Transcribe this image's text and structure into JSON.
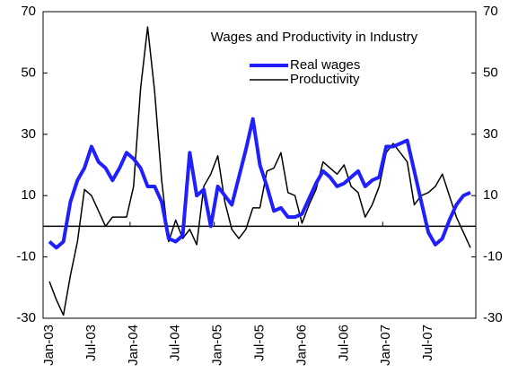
{
  "chart_data": {
    "type": "line",
    "title": "Wages and Productivity in Industry",
    "categories": [
      "Jan-03",
      null,
      null,
      null,
      null,
      null,
      "Jul-03",
      null,
      null,
      null,
      null,
      null,
      "Jan-04",
      null,
      null,
      null,
      null,
      null,
      "Jul-04",
      null,
      null,
      null,
      null,
      null,
      "Jan-05",
      null,
      null,
      null,
      null,
      null,
      "Jul-05",
      null,
      null,
      null,
      null,
      null,
      "Jan-06",
      null,
      null,
      null,
      null,
      null,
      "Jul-06",
      null,
      null,
      null,
      null,
      null,
      "Jan-07",
      null,
      null,
      null,
      null,
      null,
      "Jul-07",
      null,
      null,
      null,
      null,
      null,
      null
    ],
    "series": [
      {
        "name": "Real wages",
        "color": "#1f1fff",
        "values": [
          -5,
          -7,
          -5,
          8,
          15,
          19,
          26,
          21,
          19,
          15,
          19,
          24,
          22,
          19,
          13,
          13,
          8,
          -4,
          -5,
          -3,
          24,
          10,
          12,
          0,
          13,
          10,
          7,
          16,
          25,
          35,
          20,
          13,
          5,
          6,
          3,
          3,
          4,
          9,
          14,
          18,
          16,
          13,
          14,
          16,
          18,
          13,
          15,
          16,
          26,
          26,
          27,
          28,
          18,
          8,
          -2,
          -6,
          -4,
          2,
          7,
          10,
          11
        ]
      },
      {
        "name": "Productivity",
        "color": "#000000",
        "values": [
          -18,
          -24,
          -29,
          -16,
          -5,
          12,
          10,
          5,
          0,
          3,
          3,
          3,
          13,
          45,
          65,
          44,
          15,
          -5,
          2,
          -4,
          -1,
          -6,
          13,
          17,
          23,
          8,
          -1,
          -4,
          -1,
          6,
          6,
          18,
          19,
          24,
          11,
          10,
          1,
          7,
          12,
          21,
          19,
          17,
          20,
          13,
          11,
          3,
          7,
          13,
          24,
          27,
          24,
          21,
          7,
          10,
          11,
          13,
          17,
          10,
          3,
          -2,
          -7
        ]
      }
    ],
    "ylim": [
      -30,
      70
    ],
    "yticks": [
      -30,
      -10,
      10,
      30,
      50,
      70
    ],
    "y2lim": [
      -30,
      70
    ],
    "y2ticks": [
      -30,
      -10,
      10,
      30,
      50,
      70
    ],
    "grid": false
  }
}
